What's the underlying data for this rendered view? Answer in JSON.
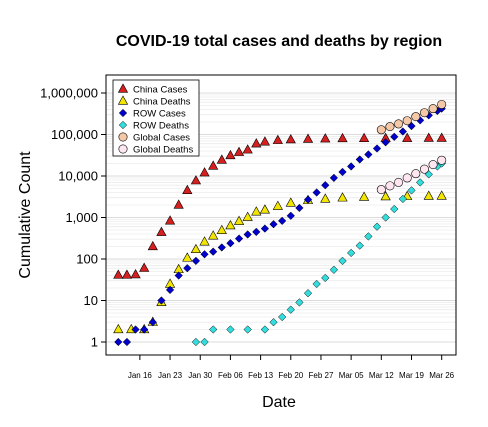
{
  "chart_data": {
    "type": "scatter",
    "title": "COVID-19 total cases and deaths by region",
    "xlabel": "Date",
    "ylabel": "Cumulative Count",
    "yscale": "log",
    "ylim": [
      1,
      1000000
    ],
    "yticks": [
      "1",
      "10",
      "100",
      "1,000",
      "10,000",
      "100,000",
      "1,000,000"
    ],
    "xlim": [
      "2020-01-10",
      "2020-03-27"
    ],
    "xticks": [
      "Jan 16",
      "Jan 23",
      "Jan 30",
      "Feb 06",
      "Feb 13",
      "Feb 20",
      "Feb 27",
      "Mar 05",
      "Mar 12",
      "Mar 19",
      "Mar 26"
    ],
    "grid": "horizontal",
    "legend_position": "top-left",
    "series": [
      {
        "name": "China Cases",
        "marker": "triangle",
        "color": "#d62020",
        "points": [
          [
            "2020-01-11",
            41
          ],
          [
            "2020-01-13",
            41
          ],
          [
            "2020-01-15",
            42
          ],
          [
            "2020-01-17",
            60
          ],
          [
            "2020-01-19",
            200
          ],
          [
            "2020-01-21",
            440
          ],
          [
            "2020-01-23",
            830
          ],
          [
            "2020-01-25",
            2000
          ],
          [
            "2020-01-27",
            4500
          ],
          [
            "2020-01-29",
            7700
          ],
          [
            "2020-01-31",
            12000
          ],
          [
            "2020-02-02",
            17400
          ],
          [
            "2020-02-04",
            24300
          ],
          [
            "2020-02-06",
            31200
          ],
          [
            "2020-02-08",
            37200
          ],
          [
            "2020-02-10",
            42700
          ],
          [
            "2020-02-12",
            59800
          ],
          [
            "2020-02-14",
            66500
          ],
          [
            "2020-02-17",
            72400
          ],
          [
            "2020-02-20",
            75000
          ],
          [
            "2020-02-24",
            77300
          ],
          [
            "2020-02-28",
            78900
          ],
          [
            "2020-03-03",
            80200
          ],
          [
            "2020-03-08",
            80700
          ],
          [
            "2020-03-13",
            80980
          ],
          [
            "2020-03-18",
            81100
          ],
          [
            "2020-03-23",
            81500
          ],
          [
            "2020-03-26",
            81700
          ]
        ]
      },
      {
        "name": "China Deaths",
        "marker": "triangle",
        "color": "#f2e600",
        "points": [
          [
            "2020-01-11",
            2
          ],
          [
            "2020-01-14",
            2
          ],
          [
            "2020-01-17",
            2
          ],
          [
            "2020-01-19",
            3
          ],
          [
            "2020-01-21",
            9
          ],
          [
            "2020-01-23",
            25
          ],
          [
            "2020-01-25",
            56
          ],
          [
            "2020-01-27",
            106
          ],
          [
            "2020-01-29",
            170
          ],
          [
            "2020-01-31",
            259
          ],
          [
            "2020-02-02",
            361
          ],
          [
            "2020-02-04",
            490
          ],
          [
            "2020-02-06",
            636
          ],
          [
            "2020-02-08",
            811
          ],
          [
            "2020-02-10",
            1016
          ],
          [
            "2020-02-12",
            1367
          ],
          [
            "2020-02-14",
            1523
          ],
          [
            "2020-02-17",
            1868
          ],
          [
            "2020-02-20",
            2236
          ],
          [
            "2020-02-24",
            2595
          ],
          [
            "2020-02-28",
            2788
          ],
          [
            "2020-03-03",
            2981
          ],
          [
            "2020-03-08",
            3097
          ],
          [
            "2020-03-13",
            3176
          ],
          [
            "2020-03-18",
            3237
          ],
          [
            "2020-03-23",
            3274
          ],
          [
            "2020-03-26",
            3292
          ]
        ]
      },
      {
        "name": "ROW Cases",
        "marker": "diamond",
        "color": "#0000cc",
        "points": [
          [
            "2020-01-11",
            1
          ],
          [
            "2020-01-13",
            1
          ],
          [
            "2020-01-15",
            2
          ],
          [
            "2020-01-17",
            2
          ],
          [
            "2020-01-19",
            3
          ],
          [
            "2020-01-21",
            10
          ],
          [
            "2020-01-23",
            18
          ],
          [
            "2020-01-25",
            40
          ],
          [
            "2020-01-27",
            60
          ],
          [
            "2020-01-29",
            90
          ],
          [
            "2020-01-31",
            130
          ],
          [
            "2020-02-02",
            150
          ],
          [
            "2020-02-04",
            190
          ],
          [
            "2020-02-06",
            240
          ],
          [
            "2020-02-08",
            310
          ],
          [
            "2020-02-10",
            390
          ],
          [
            "2020-02-12",
            450
          ],
          [
            "2020-02-14",
            540
          ],
          [
            "2020-02-16",
            690
          ],
          [
            "2020-02-18",
            830
          ],
          [
            "2020-02-20",
            1100
          ],
          [
            "2020-02-22",
            1700
          ],
          [
            "2020-02-24",
            2700
          ],
          [
            "2020-02-26",
            4000
          ],
          [
            "2020-02-28",
            6000
          ],
          [
            "2020-03-01",
            9000
          ],
          [
            "2020-03-03",
            12500
          ],
          [
            "2020-03-05",
            17000
          ],
          [
            "2020-03-07",
            25000
          ],
          [
            "2020-03-09",
            33000
          ],
          [
            "2020-03-11",
            46000
          ],
          [
            "2020-03-13",
            65000
          ],
          [
            "2020-03-15",
            88000
          ],
          [
            "2020-03-17",
            118000
          ],
          [
            "2020-03-19",
            160000
          ],
          [
            "2020-03-21",
            220000
          ],
          [
            "2020-03-23",
            290000
          ],
          [
            "2020-03-25",
            370000
          ],
          [
            "2020-03-26",
            420000
          ]
        ]
      },
      {
        "name": "ROW Deaths",
        "marker": "diamond",
        "color": "#33dddd",
        "points": [
          [
            "2020-01-29",
            1
          ],
          [
            "2020-01-31",
            1
          ],
          [
            "2020-02-02",
            2
          ],
          [
            "2020-02-06",
            2
          ],
          [
            "2020-02-10",
            2
          ],
          [
            "2020-02-14",
            2
          ],
          [
            "2020-02-16",
            3
          ],
          [
            "2020-02-18",
            4
          ],
          [
            "2020-02-20",
            6
          ],
          [
            "2020-02-22",
            9
          ],
          [
            "2020-02-24",
            15
          ],
          [
            "2020-02-26",
            25
          ],
          [
            "2020-02-28",
            35
          ],
          [
            "2020-03-01",
            55
          ],
          [
            "2020-03-03",
            90
          ],
          [
            "2020-03-05",
            140
          ],
          [
            "2020-03-07",
            210
          ],
          [
            "2020-03-09",
            350
          ],
          [
            "2020-03-11",
            600
          ],
          [
            "2020-03-13",
            1000
          ],
          [
            "2020-03-15",
            1600
          ],
          [
            "2020-03-17",
            2800
          ],
          [
            "2020-03-19",
            4500
          ],
          [
            "2020-03-21",
            7000
          ],
          [
            "2020-03-23",
            11000
          ],
          [
            "2020-03-25",
            17000
          ],
          [
            "2020-03-26",
            20000
          ]
        ]
      },
      {
        "name": "Global Cases",
        "marker": "circle",
        "color": "#f5c8a8",
        "points": [
          [
            "2020-03-12",
            130000
          ],
          [
            "2020-03-14",
            155000
          ],
          [
            "2020-03-16",
            180000
          ],
          [
            "2020-03-18",
            215000
          ],
          [
            "2020-03-20",
            270000
          ],
          [
            "2020-03-22",
            335000
          ],
          [
            "2020-03-24",
            420000
          ],
          [
            "2020-03-26",
            530000
          ]
        ]
      },
      {
        "name": "Global Deaths",
        "marker": "circle",
        "color": "#ffe6f0",
        "points": [
          [
            "2020-03-12",
            4700
          ],
          [
            "2020-03-14",
            5800
          ],
          [
            "2020-03-16",
            7000
          ],
          [
            "2020-03-18",
            9000
          ],
          [
            "2020-03-20",
            11400
          ],
          [
            "2020-03-22",
            14600
          ],
          [
            "2020-03-24",
            18800
          ],
          [
            "2020-03-26",
            24000
          ]
        ]
      }
    ]
  }
}
